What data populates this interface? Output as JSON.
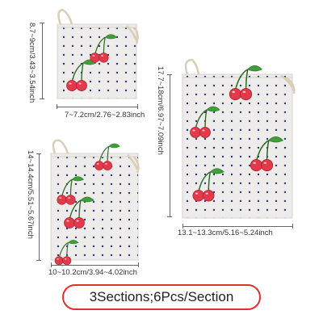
{
  "product": {
    "small": {
      "height_label": "8.7~9cm/3.43~3.54inch",
      "width_label": "7~7.2cm/2.76~2.83inch"
    },
    "medium": {
      "height_label": "14~14.4cm/5.51~5.67inch",
      "width_label": "10~10.2cm/3.94~4.02inch"
    },
    "large": {
      "height_label": "17.7~18cm/6.97~7.09inch",
      "width_label": "13.1~13.3cm/5.16~5.24inch"
    }
  },
  "banner": {
    "text": "3Sections;6Pcs/Section"
  },
  "colors": {
    "fabric": "#eeecea",
    "dots": "#2b3a6e",
    "cherry": "#e23a4a",
    "leaf": "#3fa03a",
    "banner_border": "#e03030"
  },
  "icons": {
    "cherry": "cherry-icon",
    "drawstring": "drawstring-icon"
  }
}
